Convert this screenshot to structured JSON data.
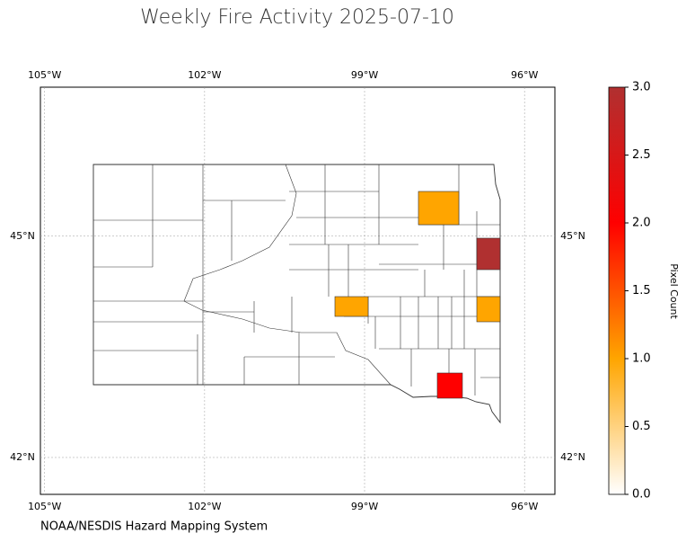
{
  "map": {
    "title": "Weekly Fire Activity 2025-07-10",
    "lonlim": [
      -105.08,
      -95.43
    ],
    "latlim": [
      41.5,
      47.02
    ],
    "lon_ticks": [
      {
        "value": -105,
        "label": "105°W"
      },
      {
        "value": -102,
        "label": "102°W"
      },
      {
        "value": -99,
        "label": "99°W"
      },
      {
        "value": -96,
        "label": "96°W"
      }
    ],
    "lat_ticks": [
      {
        "value": 42,
        "label": "42°N"
      },
      {
        "value": 45,
        "label": "45°N"
      }
    ],
    "grid": true,
    "fires": [
      1,
      3,
      1,
      1,
      2
    ],
    "colorbar": {
      "label": "Pixel Count",
      "lim": [
        0,
        3
      ],
      "colors": [
        "#ffffff",
        "#ffa500",
        "#ff0000",
        "#b03030"
      ],
      "ticks": [
        {
          "value": 0,
          "label": "0.0"
        },
        {
          "value": 0.5,
          "label": "0.5"
        },
        {
          "value": 1,
          "label": "1.0"
        },
        {
          "value": 1.5,
          "label": "1.5"
        },
        {
          "value": 2,
          "label": "2.0"
        },
        {
          "value": 2.5,
          "label": "2.5"
        },
        {
          "value": 3,
          "label": "3.0"
        }
      ]
    },
    "source": "NOAA/NESDIS Hazard Mapping System"
  }
}
